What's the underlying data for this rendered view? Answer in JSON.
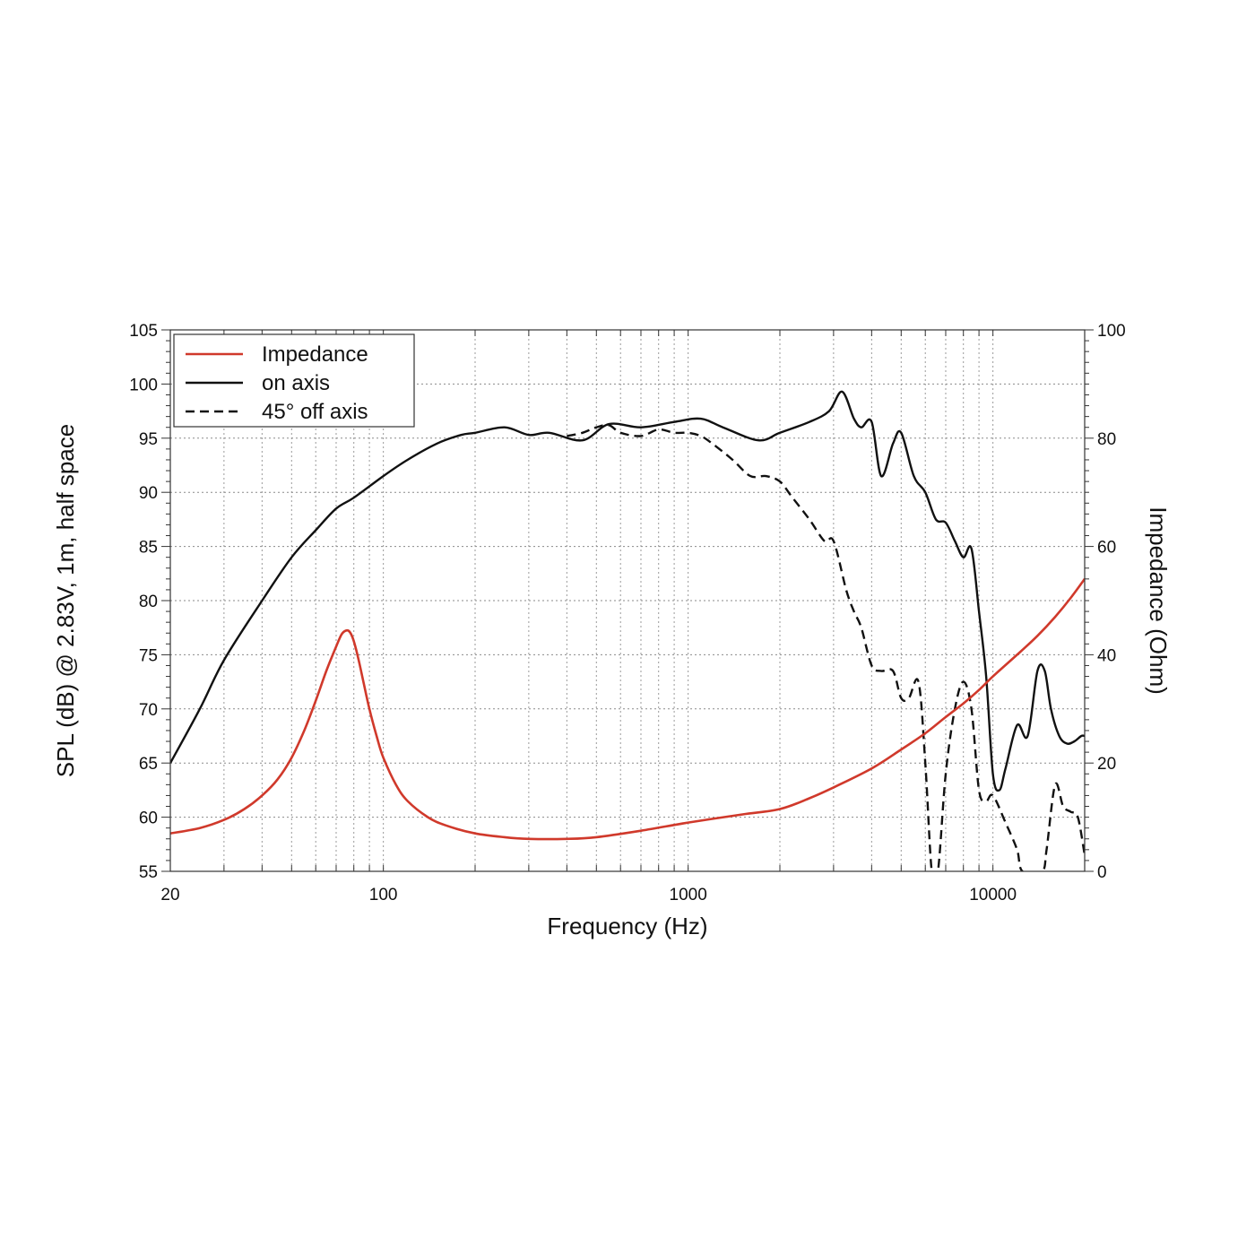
{
  "chart_data": {
    "type": "line",
    "title": "",
    "xlabel": "Frequency (Hz)",
    "ylabel": "SPL (dB) @ 2.83V, 1m, half space",
    "y2label": "Impedance (Ohm)",
    "x_scale": "log",
    "xlim": [
      20,
      20000
    ],
    "ylim": [
      55,
      105
    ],
    "y2lim": [
      0,
      100
    ],
    "grid": true,
    "legend_position": "top-left",
    "x_tick_labels": [
      "20",
      "100",
      "1000",
      "10000"
    ],
    "x_ticks": [
      20,
      100,
      1000,
      10000
    ],
    "y_ticks": [
      55,
      60,
      65,
      70,
      75,
      80,
      85,
      90,
      95,
      100,
      105
    ],
    "y_tick_labels": [
      "55",
      "60",
      "65",
      "70",
      "75",
      "80",
      "85",
      "90",
      "95",
      "100",
      "105"
    ],
    "y2_ticks": [
      0,
      20,
      40,
      60,
      80,
      100
    ],
    "y2_tick_labels": [
      "0",
      "20",
      "40",
      "60",
      "80",
      "100"
    ],
    "series": [
      {
        "name": "Impedance",
        "axis": "right",
        "color": "#d0392b",
        "style": "solid",
        "x": [
          20,
          25,
          30,
          35,
          40,
          45,
          50,
          55,
          60,
          65,
          70,
          73,
          76,
          78,
          80,
          83,
          86,
          90,
          95,
          100,
          110,
          120,
          140,
          160,
          200,
          250,
          300,
          400,
          500,
          700,
          1000,
          1500,
          2000,
          2500,
          3000,
          4000,
          5000,
          6000,
          7000,
          8000,
          9000,
          10000,
          12000,
          14000,
          16000,
          18000,
          20000
        ],
        "y": [
          7,
          8,
          9.5,
          11.5,
          14,
          17,
          21,
          26,
          31.5,
          37,
          41.5,
          43.8,
          44.5,
          44,
          42.5,
          39,
          35,
          30,
          25,
          21,
          16,
          13,
          10,
          8.5,
          7,
          6.3,
          6,
          6,
          6.3,
          7.5,
          9,
          10.5,
          11.5,
          13.5,
          15.5,
          19,
          22.5,
          25.5,
          28.5,
          31,
          33.5,
          36,
          40,
          43.5,
          47,
          50.5,
          54
        ]
      },
      {
        "name": "on axis",
        "axis": "left",
        "color": "#111111",
        "style": "solid",
        "x": [
          20,
          25,
          30,
          40,
          50,
          60,
          70,
          80,
          100,
          120,
          150,
          180,
          200,
          250,
          300,
          350,
          450,
          550,
          700,
          900,
          1100,
          1300,
          1700,
          2000,
          2500,
          2900,
          3200,
          3500,
          3700,
          4000,
          4300,
          4700,
          5000,
          5500,
          6000,
          6500,
          7000,
          7500,
          8000,
          8500,
          9000,
          9500,
          10000,
          10500,
          11000,
          12000,
          13000,
          14000,
          14800,
          15500,
          16500,
          17500,
          18500,
          19500,
          20000
        ],
        "y": [
          65,
          70,
          74.5,
          80,
          84,
          86.5,
          88.5,
          89.5,
          91.5,
          93,
          94.5,
          95.3,
          95.5,
          96,
          95.3,
          95.5,
          94.8,
          96.3,
          96,
          96.5,
          96.8,
          96,
          94.8,
          95.5,
          96.5,
          97.5,
          99.3,
          96.8,
          96,
          96.5,
          91.5,
          94.5,
          95.5,
          91.5,
          90,
          87.5,
          87.2,
          85.5,
          84,
          84.8,
          79,
          73,
          64,
          62.5,
          64.5,
          68.5,
          67.5,
          73.5,
          73.5,
          70,
          67.5,
          66.8,
          67,
          67.5,
          67.5
        ]
      },
      {
        "name": "45° off axis",
        "axis": "left",
        "color": "#111111",
        "style": "dashed",
        "x": [
          400,
          450,
          500,
          550,
          600,
          700,
          800,
          900,
          1000,
          1100,
          1200,
          1400,
          1600,
          1800,
          2000,
          2200,
          2500,
          2800,
          3000,
          3300,
          3500,
          3700,
          4000,
          4300,
          4700,
          5000,
          5300,
          5700,
          6000,
          6300,
          6600,
          7000,
          7500,
          8000,
          8500,
          9000,
          9500,
          10000,
          11000,
          12000,
          12500,
          14500,
          15000,
          16000,
          17000,
          18000,
          19000,
          20000
        ],
        "y": [
          95.2,
          95.5,
          96,
          96.2,
          95.5,
          95.2,
          95.8,
          95.5,
          95.5,
          95.2,
          94.5,
          93,
          91.5,
          91.5,
          91,
          89.5,
          87.5,
          85.5,
          85.5,
          81,
          79,
          77.5,
          74,
          73.5,
          73.5,
          71,
          71,
          72.5,
          65,
          55,
          55,
          64,
          70,
          72.5,
          70,
          62.5,
          61.5,
          62,
          59.5,
          57,
          55,
          55,
          57,
          63,
          61,
          60.5,
          60,
          56.5
        ]
      }
    ]
  }
}
